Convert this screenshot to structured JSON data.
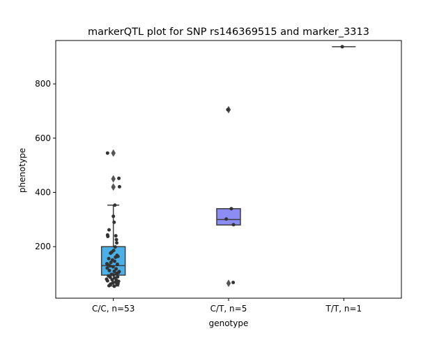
{
  "chart_data": {
    "type": "box",
    "title": "markerQTL plot for SNP rs146369515 and marker_3313",
    "xlabel": "genotype",
    "ylabel": "phenotype",
    "ylim": [
      10,
      960
    ],
    "yticks": [
      200,
      400,
      600,
      800
    ],
    "categories": [
      "C/C, n=53",
      "C/T, n=5",
      "T/T, n=1"
    ],
    "colors": [
      "#4bb0e8",
      "#8c8cf5",
      "#b89cf5"
    ],
    "boxes": [
      {
        "category": "C/C, n=53",
        "q1": 95,
        "median": 130,
        "q3": 200,
        "whisker_low": 55,
        "whisker_high": 353,
        "outliers": [
          420,
          450,
          545
        ]
      },
      {
        "category": "C/T, n=5",
        "q1": 280,
        "median": 300,
        "q3": 340,
        "whisker_low": 280,
        "whisker_high": 340,
        "outliers": [
          65,
          705
        ]
      },
      {
        "category": "T/T, n=1",
        "q1": 937,
        "median": 937,
        "q3": 937,
        "whisker_low": 937,
        "whisker_high": 937,
        "outliers": []
      }
    ],
    "points": [
      {
        "category": "C/C, n=53",
        "x": -0.38,
        "y": 545
      },
      {
        "category": "C/C, n=53",
        "x": 0.36,
        "y": 452
      },
      {
        "category": "C/C, n=53",
        "x": 0.4,
        "y": 421
      },
      {
        "category": "C/C, n=53",
        "x": 0.1,
        "y": 353
      },
      {
        "category": "C/C, n=53",
        "x": 0.0,
        "y": 312
      },
      {
        "category": "C/C, n=53",
        "x": 0.05,
        "y": 290
      },
      {
        "category": "C/C, n=53",
        "x": -0.28,
        "y": 262
      },
      {
        "category": "C/C, n=53",
        "x": -0.38,
        "y": 243
      },
      {
        "category": "C/C, n=53",
        "x": -0.36,
        "y": 238
      },
      {
        "category": "C/C, n=53",
        "x": 0.16,
        "y": 240
      },
      {
        "category": "C/C, n=53",
        "x": 0.2,
        "y": 226
      },
      {
        "category": "C/C, n=53",
        "x": 0.22,
        "y": 214
      },
      {
        "category": "C/C, n=53",
        "x": 0.12,
        "y": 199
      },
      {
        "category": "C/C, n=53",
        "x": 0.02,
        "y": 186
      },
      {
        "category": "C/C, n=53",
        "x": -0.1,
        "y": 180
      },
      {
        "category": "C/C, n=53",
        "x": -0.18,
        "y": 176
      },
      {
        "category": "C/C, n=53",
        "x": 0.24,
        "y": 168
      },
      {
        "category": "C/C, n=53",
        "x": 0.3,
        "y": 164
      },
      {
        "category": "C/C, n=53",
        "x": 0.14,
        "y": 161
      },
      {
        "category": "C/C, n=53",
        "x": -0.3,
        "y": 156
      },
      {
        "category": "C/C, n=53",
        "x": -0.06,
        "y": 151
      },
      {
        "category": "C/C, n=53",
        "x": 0.08,
        "y": 146
      },
      {
        "category": "C/C, n=53",
        "x": -0.16,
        "y": 142
      },
      {
        "category": "C/C, n=53",
        "x": -0.42,
        "y": 137
      },
      {
        "category": "C/C, n=53",
        "x": -0.34,
        "y": 133
      },
      {
        "category": "C/C, n=53",
        "x": 0.26,
        "y": 135
      },
      {
        "category": "C/C, n=53",
        "x": -0.22,
        "y": 129
      },
      {
        "category": "C/C, n=53",
        "x": -0.02,
        "y": 126
      },
      {
        "category": "C/C, n=53",
        "x": -0.4,
        "y": 121
      },
      {
        "category": "C/C, n=53",
        "x": 0.18,
        "y": 118
      },
      {
        "category": "C/C, n=53",
        "x": -0.26,
        "y": 112
      },
      {
        "category": "C/C, n=53",
        "x": 0.06,
        "y": 109
      },
      {
        "category": "C/C, n=53",
        "x": 0.38,
        "y": 108
      },
      {
        "category": "C/C, n=53",
        "x": 0.32,
        "y": 104
      },
      {
        "category": "C/C, n=53",
        "x": 0.22,
        "y": 101
      },
      {
        "category": "C/C, n=53",
        "x": -0.12,
        "y": 98
      },
      {
        "category": "C/C, n=53",
        "x": 0.02,
        "y": 96
      },
      {
        "category": "C/C, n=53",
        "x": -0.32,
        "y": 92
      },
      {
        "category": "C/C, n=53",
        "x": 0.28,
        "y": 89
      },
      {
        "category": "C/C, n=53",
        "x": -0.2,
        "y": 87
      },
      {
        "category": "C/C, n=53",
        "x": 0.12,
        "y": 84
      },
      {
        "category": "C/C, n=53",
        "x": -0.44,
        "y": 80
      },
      {
        "category": "C/C, n=53",
        "x": -0.08,
        "y": 78
      },
      {
        "category": "C/C, n=53",
        "x": 0.2,
        "y": 76
      },
      {
        "category": "C/C, n=53",
        "x": -0.38,
        "y": 74
      },
      {
        "category": "C/C, n=53",
        "x": 0.34,
        "y": 72
      },
      {
        "category": "C/C, n=53",
        "x": 0.14,
        "y": 69
      },
      {
        "category": "C/C, n=53",
        "x": -0.04,
        "y": 66
      },
      {
        "category": "C/C, n=53",
        "x": 0.3,
        "y": 63
      },
      {
        "category": "C/C, n=53",
        "x": -0.18,
        "y": 62
      },
      {
        "category": "C/C, n=53",
        "x": 0.24,
        "y": 60
      },
      {
        "category": "C/C, n=53",
        "x": -0.28,
        "y": 56
      },
      {
        "category": "C/C, n=53",
        "x": 0.06,
        "y": 54
      },
      {
        "category": "C/T, n=5",
        "x": -0.05,
        "y": 705
      },
      {
        "category": "C/T, n=5",
        "x": 0.18,
        "y": 340
      },
      {
        "category": "C/T, n=5",
        "x": -0.15,
        "y": 302
      },
      {
        "category": "C/T, n=5",
        "x": 0.32,
        "y": 281
      },
      {
        "category": "C/T, n=5",
        "x": 0.3,
        "y": 68
      },
      {
        "category": "T/T, n=1",
        "x": -0.1,
        "y": 937
      }
    ]
  }
}
